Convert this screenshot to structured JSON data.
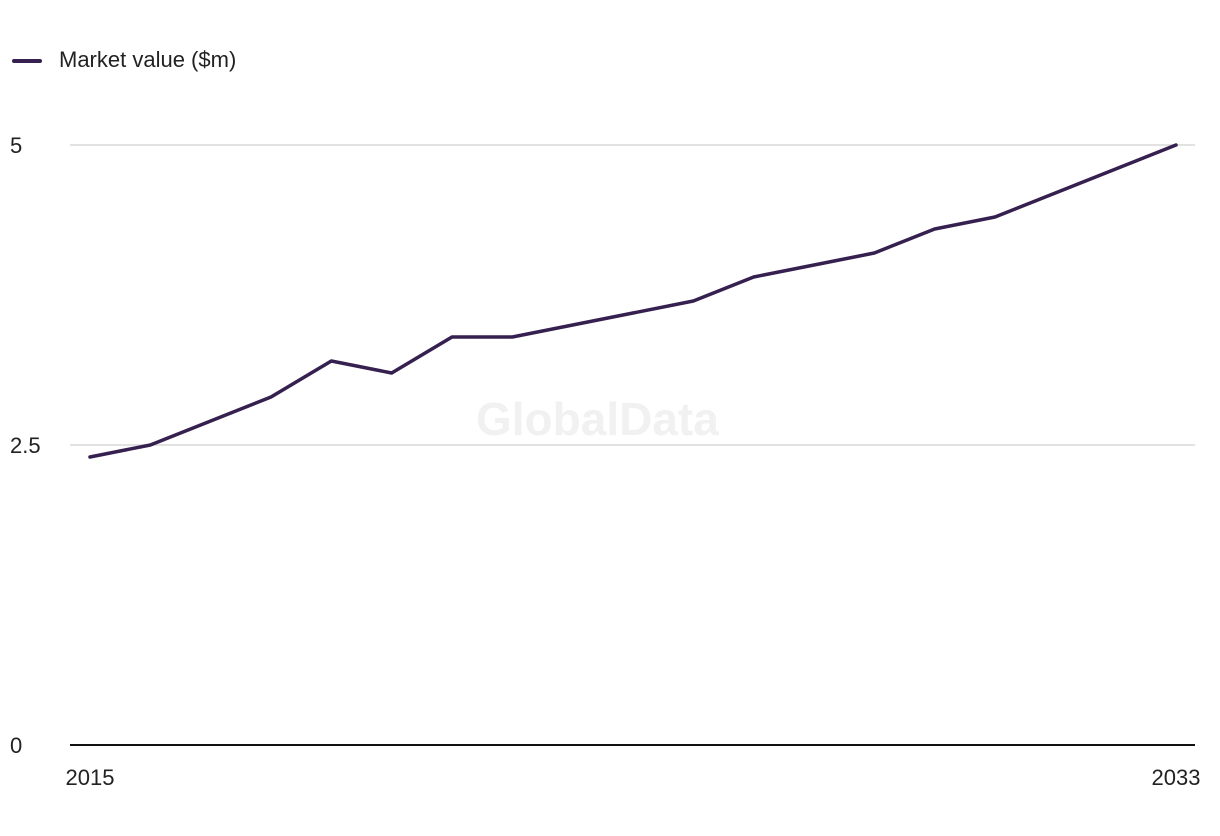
{
  "legend": {
    "label": "Market value ($m)"
  },
  "watermark": "GlobalData",
  "colors": {
    "series": "#35204f",
    "grid": "#d9d9d9",
    "axis": "#111111",
    "text": "#222222"
  },
  "chart_data": {
    "type": "line",
    "x": [
      2015,
      2016,
      2017,
      2018,
      2019,
      2020,
      2021,
      2022,
      2023,
      2024,
      2025,
      2026,
      2027,
      2028,
      2029,
      2030,
      2031,
      2032,
      2033
    ],
    "series": [
      {
        "name": "Market value ($m)",
        "values": [
          2.4,
          2.5,
          2.7,
          2.9,
          3.2,
          3.1,
          3.4,
          3.4,
          3.5,
          3.6,
          3.7,
          3.9,
          4.0,
          4.1,
          4.3,
          4.4,
          4.6,
          4.8,
          5.0
        ]
      }
    ],
    "ylim": [
      0,
      5
    ],
    "yticks": [
      {
        "value": 0,
        "label": "0"
      },
      {
        "value": 2.5,
        "label": "2.5"
      },
      {
        "value": 5,
        "label": "5"
      }
    ],
    "xtick_labels": [
      {
        "x": 2015,
        "label": "2015"
      },
      {
        "x": 2033,
        "label": "2033"
      }
    ],
    "grid": true,
    "legend_position": "top-left"
  }
}
